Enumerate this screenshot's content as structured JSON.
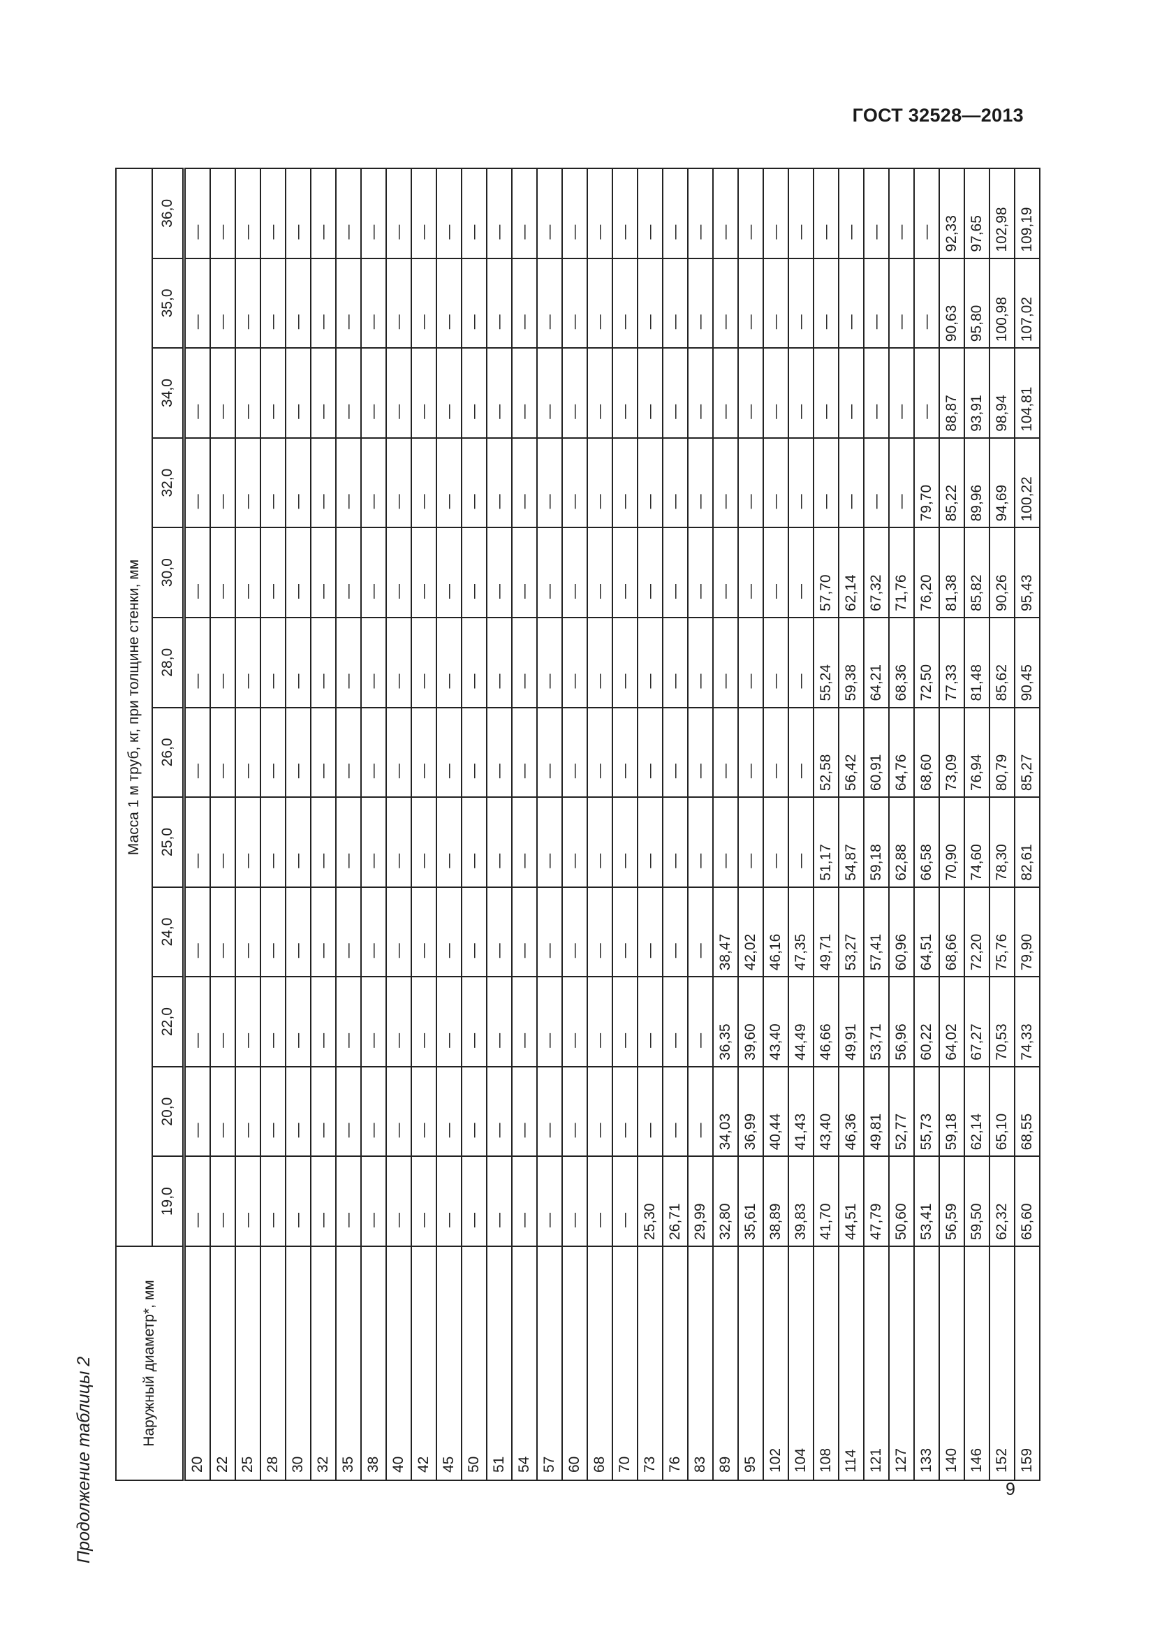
{
  "header": {
    "doc_code": "ГОСТ 32528—2013"
  },
  "caption": "Продолжение таблицы 2",
  "page_number": "9",
  "table": {
    "diameter_header": "Наружный диаметр*, мм",
    "mass_header": "Масса 1 м труб, кг, при толщине стенки, мм",
    "thickness": [
      "19,0",
      "20,0",
      "22,0",
      "24,0",
      "25,0",
      "26,0",
      "28,0",
      "30,0",
      "32,0",
      "34,0",
      "35,0",
      "36,0"
    ],
    "rows": [
      {
        "d": "20",
        "v": [
          "—",
          "—",
          "—",
          "—",
          "—",
          "—",
          "—",
          "—",
          "—",
          "—",
          "—",
          "—"
        ]
      },
      {
        "d": "22",
        "v": [
          "—",
          "—",
          "—",
          "—",
          "—",
          "—",
          "—",
          "—",
          "—",
          "—",
          "—",
          "—"
        ]
      },
      {
        "d": "25",
        "v": [
          "—",
          "—",
          "—",
          "—",
          "—",
          "—",
          "—",
          "—",
          "—",
          "—",
          "—",
          "—"
        ]
      },
      {
        "d": "28",
        "v": [
          "—",
          "—",
          "—",
          "—",
          "—",
          "—",
          "—",
          "—",
          "—",
          "—",
          "—",
          "—"
        ]
      },
      {
        "d": "30",
        "v": [
          "—",
          "—",
          "—",
          "—",
          "—",
          "—",
          "—",
          "—",
          "—",
          "—",
          "—",
          "—"
        ]
      },
      {
        "d": "32",
        "v": [
          "—",
          "—",
          "—",
          "—",
          "—",
          "—",
          "—",
          "—",
          "—",
          "—",
          "—",
          "—"
        ]
      },
      {
        "d": "35",
        "v": [
          "—",
          "—",
          "—",
          "—",
          "—",
          "—",
          "—",
          "—",
          "—",
          "—",
          "—",
          "—"
        ]
      },
      {
        "d": "38",
        "v": [
          "—",
          "—",
          "—",
          "—",
          "—",
          "—",
          "—",
          "—",
          "—",
          "—",
          "—",
          "—"
        ]
      },
      {
        "d": "40",
        "v": [
          "—",
          "—",
          "—",
          "—",
          "—",
          "—",
          "—",
          "—",
          "—",
          "—",
          "—",
          "—"
        ]
      },
      {
        "d": "42",
        "v": [
          "—",
          "—",
          "—",
          "—",
          "—",
          "—",
          "—",
          "—",
          "—",
          "—",
          "—",
          "—"
        ]
      },
      {
        "d": "45",
        "v": [
          "—",
          "—",
          "—",
          "—",
          "—",
          "—",
          "—",
          "—",
          "—",
          "—",
          "—",
          "—"
        ]
      },
      {
        "d": "50",
        "v": [
          "—",
          "—",
          "—",
          "—",
          "—",
          "—",
          "—",
          "—",
          "—",
          "—",
          "—",
          "—"
        ]
      },
      {
        "d": "51",
        "v": [
          "—",
          "—",
          "—",
          "—",
          "—",
          "—",
          "—",
          "—",
          "—",
          "—",
          "—",
          "—"
        ]
      },
      {
        "d": "54",
        "v": [
          "—",
          "—",
          "—",
          "—",
          "—",
          "—",
          "—",
          "—",
          "—",
          "—",
          "—",
          "—"
        ]
      },
      {
        "d": "57",
        "v": [
          "—",
          "—",
          "—",
          "—",
          "—",
          "—",
          "—",
          "—",
          "—",
          "—",
          "—",
          "—"
        ]
      },
      {
        "d": "60",
        "v": [
          "—",
          "—",
          "—",
          "—",
          "—",
          "—",
          "—",
          "—",
          "—",
          "—",
          "—",
          "—"
        ]
      },
      {
        "d": "68",
        "v": [
          "—",
          "—",
          "—",
          "—",
          "—",
          "—",
          "—",
          "—",
          "—",
          "—",
          "—",
          "—"
        ]
      },
      {
        "d": "70",
        "v": [
          "—",
          "—",
          "—",
          "—",
          "—",
          "—",
          "—",
          "—",
          "—",
          "—",
          "—",
          "—"
        ]
      },
      {
        "d": "73",
        "v": [
          "25,30",
          "—",
          "—",
          "—",
          "—",
          "—",
          "—",
          "—",
          "—",
          "—",
          "—",
          "—"
        ]
      },
      {
        "d": "76",
        "v": [
          "26,71",
          "—",
          "—",
          "—",
          "—",
          "—",
          "—",
          "—",
          "—",
          "—",
          "—",
          "—"
        ]
      },
      {
        "d": "83",
        "v": [
          "29,99",
          "—",
          "—",
          "—",
          "—",
          "—",
          "—",
          "—",
          "—",
          "—",
          "—",
          "—"
        ]
      },
      {
        "d": "89",
        "v": [
          "32,80",
          "34,03",
          "36,35",
          "38,47",
          "—",
          "—",
          "—",
          "—",
          "—",
          "—",
          "—",
          "—"
        ]
      },
      {
        "d": "95",
        "v": [
          "35,61",
          "36,99",
          "39,60",
          "42,02",
          "—",
          "—",
          "—",
          "—",
          "—",
          "—",
          "—",
          "—"
        ]
      },
      {
        "d": "102",
        "v": [
          "38,89",
          "40,44",
          "43,40",
          "46,16",
          "—",
          "—",
          "—",
          "—",
          "—",
          "—",
          "—",
          "—"
        ]
      },
      {
        "d": "104",
        "v": [
          "39,83",
          "41,43",
          "44,49",
          "47,35",
          "—",
          "—",
          "—",
          "—",
          "—",
          "—",
          "—",
          "—"
        ]
      },
      {
        "d": "108",
        "v": [
          "41,70",
          "43,40",
          "46,66",
          "49,71",
          "51,17",
          "52,58",
          "55,24",
          "57,70",
          "—",
          "—",
          "—",
          "—"
        ]
      },
      {
        "d": "114",
        "v": [
          "44,51",
          "46,36",
          "49,91",
          "53,27",
          "54,87",
          "56,42",
          "59,38",
          "62,14",
          "—",
          "—",
          "—",
          "—"
        ]
      },
      {
        "d": "121",
        "v": [
          "47,79",
          "49,81",
          "53,71",
          "57,41",
          "59,18",
          "60,91",
          "64,21",
          "67,32",
          "—",
          "—",
          "—",
          "—"
        ]
      },
      {
        "d": "127",
        "v": [
          "50,60",
          "52,77",
          "56,96",
          "60,96",
          "62,88",
          "64,76",
          "68,36",
          "71,76",
          "—",
          "—",
          "—",
          "—"
        ]
      },
      {
        "d": "133",
        "v": [
          "53,41",
          "55,73",
          "60,22",
          "64,51",
          "66,58",
          "68,60",
          "72,50",
          "76,20",
          "79,70",
          "—",
          "—",
          "—"
        ]
      },
      {
        "d": "140",
        "v": [
          "56,59",
          "59,18",
          "64,02",
          "68,66",
          "70,90",
          "73,09",
          "77,33",
          "81,38",
          "85,22",
          "88,87",
          "90,63",
          "92,33"
        ]
      },
      {
        "d": "146",
        "v": [
          "59,50",
          "62,14",
          "67,27",
          "72,20",
          "74,60",
          "76,94",
          "81,48",
          "85,82",
          "89,96",
          "93,91",
          "95,80",
          "97,65"
        ]
      },
      {
        "d": "152",
        "v": [
          "62,32",
          "65,10",
          "70,53",
          "75,76",
          "78,30",
          "80,79",
          "85,62",
          "90,26",
          "94,69",
          "98,94",
          "100,98",
          "102,98"
        ]
      },
      {
        "d": "159",
        "v": [
          "65,60",
          "68,55",
          "74,33",
          "79,90",
          "82,61",
          "85,27",
          "90,45",
          "95,43",
          "100,22",
          "104,81",
          "107,02",
          "109,19"
        ]
      }
    ]
  }
}
